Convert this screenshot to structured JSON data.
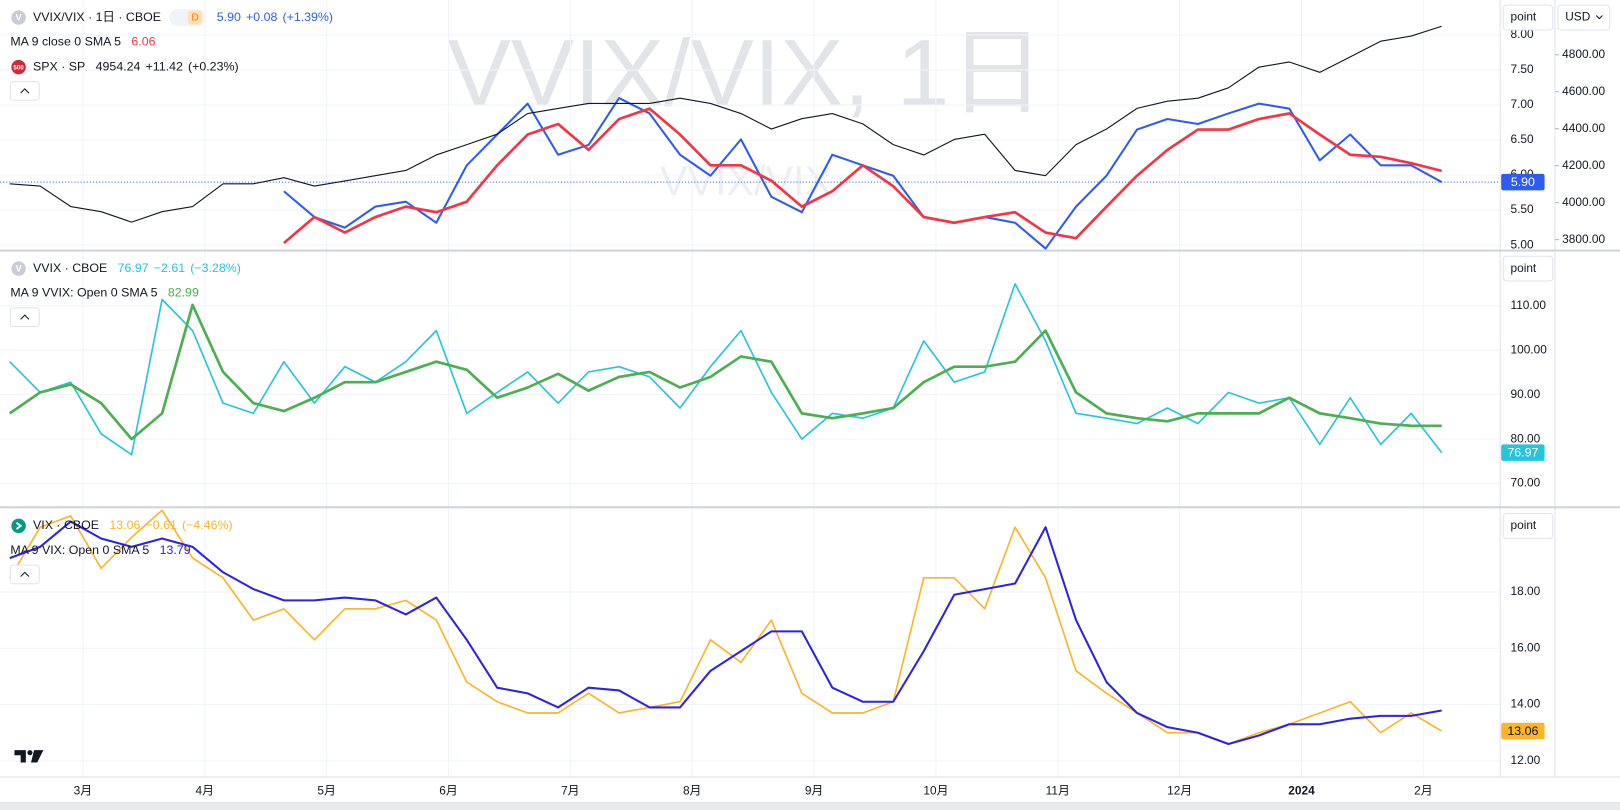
{
  "watermark": {
    "main": "VVIX/VIX, 1日",
    "sub": "VVIX/VIX"
  },
  "buttons": {
    "scale": "point",
    "currency": "USD"
  },
  "x_axis": {
    "x": [
      2.4,
      2.65,
      2.9,
      3.15,
      3.4,
      3.65,
      3.9,
      4.15,
      4.4,
      4.65,
      4.9,
      5.15,
      5.4,
      5.65,
      5.9,
      6.15,
      6.4,
      6.65,
      6.9,
      7.15,
      7.4,
      7.65,
      7.9,
      8.15,
      8.4,
      8.65,
      8.9,
      9.15,
      9.4,
      9.65,
      9.9,
      10.15,
      10.4,
      10.65,
      10.9,
      11.15,
      11.4,
      11.65,
      11.9,
      12.15,
      12.4,
      12.65,
      12.9,
      13.15,
      13.4,
      13.65,
      13.9,
      14.15
    ],
    "xlim": [
      2.32,
      14.63
    ],
    "xticks": [
      {
        "value": 3,
        "label": "3月"
      },
      {
        "value": 4,
        "label": "4月"
      },
      {
        "value": 5,
        "label": "5月"
      },
      {
        "value": 6,
        "label": "6月"
      },
      {
        "value": 7,
        "label": "7月"
      },
      {
        "value": 8,
        "label": "8月"
      },
      {
        "value": 9,
        "label": "9月"
      },
      {
        "value": 10,
        "label": "10月"
      },
      {
        "value": 11,
        "label": "11月"
      },
      {
        "value": 12,
        "label": "12月"
      },
      {
        "value": 13,
        "label": "2024"
      },
      {
        "value": 14,
        "label": "2月"
      }
    ]
  },
  "chart_data": [
    {
      "type": "line",
      "ylim": [
        4.93,
        8.5
      ],
      "yticks": [
        {
          "value": 5,
          "label": "5.00"
        },
        {
          "value": 5.5,
          "label": "5.50"
        },
        {
          "value": 6,
          "label": "6.00"
        },
        {
          "value": 6.5,
          "label": "6.50"
        },
        {
          "value": 7,
          "label": "7.00"
        },
        {
          "value": 7.5,
          "label": "7.50"
        },
        {
          "value": 8,
          "label": "8.00"
        }
      ],
      "y2lim": [
        3744,
        5096
      ],
      "y2ticks": [
        {
          "value": 3800,
          "label": "3800.00"
        },
        {
          "value": 4000,
          "label": "4000.00"
        },
        {
          "value": 4200,
          "label": "4200.00"
        },
        {
          "value": 4400,
          "label": "4400.00"
        },
        {
          "value": 4600,
          "label": "4600.00"
        },
        {
          "value": 4800,
          "label": "4800.00"
        }
      ],
      "grid": true,
      "series": [
        {
          "name": "VVIX/VIX · 1日 · CBOE",
          "icon": "V",
          "icon_color": "#c9ccd4",
          "badge": "D",
          "color": "#2f5cf0",
          "width": 2,
          "price_label": true,
          "price_line": true,
          "label_text_color": "#ffffff",
          "legend": [
            "5.90",
            "+0.08",
            "(+1.39%)"
          ],
          "values": [
            null,
            null,
            null,
            null,
            null,
            null,
            null,
            null,
            null,
            5.77,
            5.4,
            5.25,
            5.55,
            5.62,
            5.32,
            6.14,
            6.58,
            7.02,
            6.29,
            6.43,
            7.1,
            6.88,
            6.29,
            5.99,
            6.51,
            5.69,
            5.47,
            6.29,
            6.14,
            5.99,
            5.4,
            5.32,
            5.4,
            5.32,
            4.95,
            5.55,
            5.99,
            6.65,
            6.8,
            6.73,
            6.88,
            7.02,
            6.95,
            6.21,
            6.58,
            6.14,
            6.14,
            5.9
          ]
        },
        {
          "name": "MA 9 close 0 SMA 5",
          "color": "#f23645",
          "width": 2.6,
          "legend": [
            "6.06"
          ],
          "values": [
            null,
            null,
            null,
            null,
            null,
            null,
            null,
            null,
            null,
            5.03,
            5.4,
            5.18,
            5.4,
            5.55,
            5.47,
            5.62,
            6.14,
            6.58,
            6.73,
            6.36,
            6.8,
            6.95,
            6.58,
            6.14,
            6.14,
            5.92,
            5.55,
            5.77,
            6.14,
            5.84,
            5.4,
            5.32,
            5.4,
            5.47,
            5.18,
            5.1,
            5.55,
            5.99,
            6.36,
            6.65,
            6.65,
            6.8,
            6.88,
            6.58,
            6.29,
            6.26,
            6.17,
            6.06
          ]
        },
        {
          "name": "SPX · SP",
          "icon": "500",
          "icon_color": "#d1283b",
          "color": "#131722",
          "width": 1.1,
          "axis": "y2",
          "legend": [
            "4954.24",
            "+11.42",
            "(+0.23%)"
          ],
          "values": [
            4102,
            4090,
            3979,
            3951,
            3895,
            3951,
            3979,
            4102,
            4102,
            4135,
            4090,
            4118,
            4146,
            4174,
            4258,
            4314,
            4370,
            4482,
            4510,
            4537,
            4537,
            4537,
            4565,
            4537,
            4482,
            4398,
            4454,
            4482,
            4426,
            4314,
            4258,
            4342,
            4370,
            4174,
            4146,
            4314,
            4398,
            4510,
            4549,
            4565,
            4621,
            4733,
            4761,
            4705,
            4789,
            4873,
            4901,
            4954.24
          ]
        }
      ]
    },
    {
      "type": "line",
      "ylim": [
        64.9,
        122.3
      ],
      "yticks": [
        {
          "value": 70,
          "label": "70.00"
        },
        {
          "value": 80,
          "label": "80.00"
        },
        {
          "value": 90,
          "label": "90.00"
        },
        {
          "value": 100,
          "label": "100.00"
        },
        {
          "value": 110,
          "label": "110.00"
        }
      ],
      "grid": true,
      "series": [
        {
          "name": "VVIX · CBOE",
          "icon": "V",
          "icon_color": "#c9ccd4",
          "color": "#26c6da",
          "width": 1.6,
          "price_label": true,
          "label_text_color": "#ffffff",
          "legend": [
            "76.97",
            "−2.61",
            "(−3.28%)"
          ],
          "values": [
            97.4,
            90.5,
            92.8,
            81.2,
            76.5,
            111.4,
            104.4,
            88.1,
            85.8,
            97.4,
            88.1,
            96.3,
            92.8,
            97.4,
            104.4,
            85.8,
            90.5,
            95.1,
            88.1,
            95.1,
            96.3,
            94.0,
            87.0,
            96.3,
            104.4,
            90.5,
            80.0,
            85.8,
            84.7,
            87.0,
            102.1,
            92.8,
            95.1,
            114.9,
            102.1,
            85.8,
            84.7,
            83.5,
            87.0,
            83.5,
            90.5,
            88.1,
            89.3,
            78.8,
            89.3,
            78.8,
            85.8,
            76.97
          ]
        },
        {
          "name": "MA 9 VVIX: Open 0 SMA 5",
          "color": "#4caf50",
          "width": 2.6,
          "legend": [
            "82.99"
          ],
          "values": [
            85.8,
            90.5,
            92.3,
            88.1,
            80.0,
            85.8,
            110.2,
            95.1,
            88.1,
            86.3,
            89.3,
            92.8,
            92.8,
            95.1,
            97.4,
            95.6,
            89.3,
            91.6,
            94.7,
            90.9,
            94.0,
            95.1,
            91.6,
            94.0,
            98.6,
            97.4,
            85.8,
            84.7,
            85.8,
            87.0,
            92.8,
            96.3,
            96.3,
            97.4,
            104.4,
            90.5,
            85.8,
            84.7,
            84.0,
            85.8,
            85.8,
            85.8,
            89.3,
            85.8,
            84.7,
            83.5,
            83.0,
            82.99
          ]
        }
      ]
    },
    {
      "type": "line",
      "ylim": [
        11.43,
        20.97
      ],
      "yticks": [
        {
          "value": 12,
          "label": "12.00"
        },
        {
          "value": 14,
          "label": "14.00"
        },
        {
          "value": 16,
          "label": "16.00"
        },
        {
          "value": 18,
          "label": "18.00"
        }
      ],
      "grid": true,
      "series": [
        {
          "name": "VIX · CBOE",
          "icon": "",
          "icon_color": "#089981",
          "color": "#fbb528",
          "width": 1.6,
          "price_label": true,
          "label_text_color": "#131722",
          "legend": [
            "13.06",
            "−0.61",
            "(−4.46%)"
          ],
          "values": [
            18.48,
            20.3,
            20.7,
            18.84,
            19.94,
            20.9,
            19.2,
            18.5,
            17.0,
            17.4,
            16.3,
            17.4,
            17.4,
            17.7,
            17.0,
            14.8,
            14.1,
            13.7,
            13.7,
            14.4,
            13.7,
            13.9,
            14.1,
            16.3,
            15.5,
            17.0,
            14.4,
            13.7,
            13.7,
            14.1,
            18.5,
            18.5,
            17.4,
            20.3,
            18.5,
            15.2,
            14.4,
            13.7,
            13.0,
            13.0,
            12.6,
            13.0,
            13.3,
            13.7,
            14.1,
            13.0,
            13.7,
            13.06
          ]
        },
        {
          "name": "MA 9 VIX: Open 0 SMA 5",
          "color": "#2d23e0",
          "width": 2,
          "legend": [
            "13.79"
          ],
          "values": [
            19.2,
            19.6,
            20.5,
            19.9,
            19.6,
            19.9,
            19.6,
            18.7,
            18.1,
            17.7,
            17.7,
            17.8,
            17.7,
            17.2,
            17.8,
            16.3,
            14.6,
            14.4,
            13.9,
            14.6,
            14.5,
            13.9,
            13.9,
            15.2,
            15.9,
            16.6,
            16.6,
            14.6,
            14.1,
            14.1,
            15.9,
            17.9,
            18.1,
            18.3,
            20.3,
            17.0,
            14.8,
            13.7,
            13.2,
            13.0,
            12.6,
            12.9,
            13.3,
            13.3,
            13.5,
            13.6,
            13.6,
            13.79
          ]
        }
      ]
    }
  ]
}
